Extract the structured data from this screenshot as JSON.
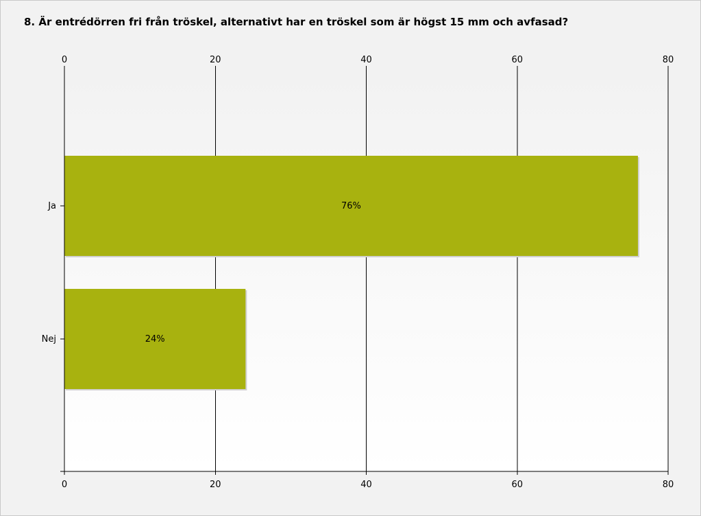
{
  "title": "8. Är entrédörren fri från tröskel, alternativt har en tröskel som är högst 15 mm och avfasad?",
  "colors": {
    "bar": "#a8b20f",
    "grid": "#000000"
  },
  "chart_data": {
    "type": "bar",
    "orientation": "horizontal",
    "title": "8. Är entrédörren fri från tröskel, alternativt har en tröskel som är högst 15 mm och avfasad?",
    "categories": [
      "Ja",
      "Nej"
    ],
    "values": [
      76,
      24
    ],
    "data_labels": [
      "76%",
      "24%"
    ],
    "xlim": [
      0,
      80
    ],
    "xticks": [
      0,
      20,
      40,
      60,
      80
    ],
    "x_axis_position": "top-and-bottom",
    "grid": true,
    "xlabel": "",
    "ylabel": ""
  }
}
